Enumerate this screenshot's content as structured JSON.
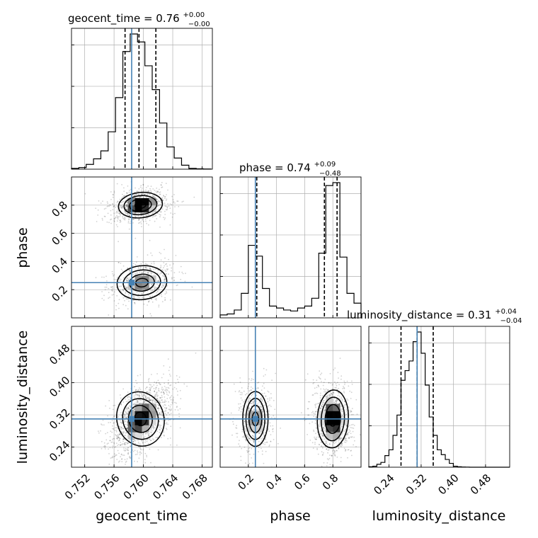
{
  "chart_data": {
    "type": "corner",
    "parameters": [
      "geocent_time",
      "phase",
      "luminosity_distance"
    ],
    "truths": {
      "geocent_time": 0.7584,
      "phase": 0.25,
      "luminosity_distance": 0.31
    },
    "grid": true,
    "axes_labels": {
      "x": [
        "geocent_time",
        "phase",
        "luminosity_distance"
      ],
      "y": [
        "phase",
        "luminosity_distance"
      ]
    },
    "ranges": {
      "geocent_time": [
        0.7502,
        0.7694
      ],
      "phase": [
        0.0,
        1.0
      ],
      "luminosity_distance": [
        0.19,
        0.54
      ]
    },
    "ticks": {
      "geocent_time": {
        "values": [
          0.752,
          0.756,
          0.76,
          0.764,
          0.768
        ],
        "labels": [
          "0.752",
          "0.756",
          "0.760",
          "0.764",
          "0.768"
        ]
      },
      "phase": {
        "values": [
          0.2,
          0.4,
          0.6,
          0.8
        ],
        "labels": [
          "0.2",
          "0.4",
          "0.6",
          "0.8"
        ]
      },
      "luminosity_distance": {
        "values": [
          0.24,
          0.32,
          0.4,
          0.48
        ],
        "labels": [
          "0.24",
          "0.32",
          "0.40",
          "0.48"
        ]
      }
    },
    "diagonal": [
      {
        "parameter": "geocent_time",
        "title_main": "geocent_time = 0.76",
        "title_sup": "+0.00",
        "title_sub": "−0.00",
        "quantiles": [
          0.7575,
          0.7594,
          0.7617
        ],
        "bins": [
          0.7502,
          0.7512,
          0.7522,
          0.7532,
          0.7542,
          0.7552,
          0.7562,
          0.7572,
          0.7582,
          0.7592,
          0.7602,
          0.7612,
          0.7622,
          0.7632,
          0.7642,
          0.7652,
          0.7662,
          0.7672,
          0.7682,
          0.7692
        ],
        "counts": [
          1,
          2,
          6,
          13,
          23,
          47,
          90,
          148,
          170,
          160,
          130,
          100,
          58,
          28,
          14,
          5,
          1,
          0.5,
          0.2
        ]
      },
      {
        "parameter": "phase",
        "title_main": "phase = 0.74",
        "title_sup": "+0.09",
        "title_sub": "−0.48",
        "quantiles": [
          0.26,
          0.74,
          0.83
        ],
        "bins": [
          0.0,
          0.05,
          0.1,
          0.15,
          0.2,
          0.25,
          0.3,
          0.35,
          0.4,
          0.45,
          0.5,
          0.55,
          0.6,
          0.65,
          0.7,
          0.75,
          0.8,
          0.85,
          0.9,
          0.95,
          1.0
        ],
        "counts": [
          3,
          4,
          8,
          25,
          74,
          63,
          30,
          12,
          10,
          8,
          7,
          10,
          12,
          20,
          66,
          135,
          138,
          62,
          25,
          15
        ]
      },
      {
        "parameter": "luminosity_distance",
        "title_main": "luminosity_distance = 0.31",
        "title_sup": "+0.04",
        "title_sub": "−0.04",
        "quantiles": [
          0.27,
          0.31,
          0.35
        ],
        "bins": [
          0.19,
          0.2,
          0.21,
          0.22,
          0.23,
          0.24,
          0.25,
          0.26,
          0.27,
          0.28,
          0.29,
          0.3,
          0.31,
          0.32,
          0.33,
          0.34,
          0.35,
          0.36,
          0.37,
          0.38,
          0.39,
          0.4,
          0.41,
          0.42,
          0.43,
          0.44,
          0.45,
          0.46,
          0.47,
          0.48,
          0.49,
          0.5,
          0.51,
          0.52,
          0.53,
          0.54
        ],
        "counts": [
          0.5,
          1,
          3,
          5,
          12,
          18,
          33,
          54,
          90,
          100,
          110,
          130,
          140,
          118,
          85,
          52,
          33,
          18,
          13,
          8,
          4,
          1,
          0.5,
          0.2,
          0.1,
          0,
          0,
          0,
          0,
          0,
          0,
          0,
          0,
          0,
          0
        ]
      }
    ],
    "joint": [
      {
        "row": 1,
        "col": 0,
        "x": "geocent_time",
        "y": "phase",
        "modes": [
          {
            "mx": 0.7596,
            "my": 0.8,
            "sx": 0.0015,
            "sy": 0.045,
            "w": 0.62,
            "rho": 0.2
          },
          {
            "mx": 0.7598,
            "my": 0.25,
            "sx": 0.0017,
            "sy": 0.06,
            "w": 0.38,
            "rho": 0.2
          }
        ]
      },
      {
        "row": 2,
        "col": 0,
        "x": "geocent_time",
        "y": "luminosity_distance",
        "modes": [
          {
            "mx": 0.7596,
            "my": 0.31,
            "sx": 0.0016,
            "sy": 0.034,
            "w": 1.0,
            "rho": 0.5
          }
        ]
      },
      {
        "row": 2,
        "col": 1,
        "x": "phase",
        "y": "luminosity_distance",
        "modes": [
          {
            "mx": 0.8,
            "my": 0.31,
            "sx": 0.055,
            "sy": 0.036,
            "w": 0.62,
            "rho": -0.1
          },
          {
            "mx": 0.25,
            "my": 0.31,
            "sx": 0.045,
            "sy": 0.034,
            "w": 0.38,
            "rho": 0.0
          }
        ]
      }
    ],
    "colors": {
      "truth": "#4682b4",
      "hist": "#000000",
      "grid": "#b0b0b0",
      "points": "#000000"
    }
  }
}
